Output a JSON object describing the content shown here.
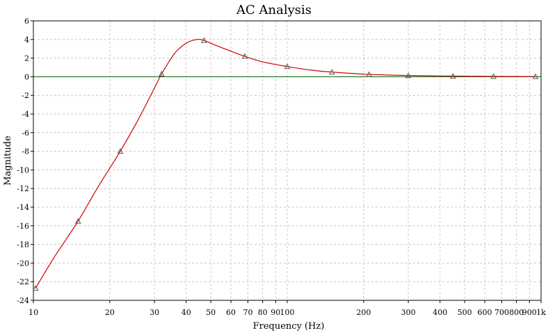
{
  "chart_data": {
    "type": "line",
    "title": "AC Analysis",
    "xlabel": "Frequency (Hz)",
    "ylabel": "Magnitude",
    "x_scale": "log",
    "xlim": [
      10,
      1000
    ],
    "ylim": [
      -24,
      6
    ],
    "grid": true,
    "x_ticks": [
      10,
      20,
      30,
      40,
      50,
      60,
      70,
      80,
      90,
      100,
      200,
      300,
      400,
      500,
      600,
      700,
      800,
      900,
      1000
    ],
    "x_tick_labels": [
      "10",
      "20",
      "30",
      "40",
      "50",
      "60",
      "70",
      "80",
      "90",
      "100",
      "200",
      "300",
      "400",
      "500",
      "600",
      "700",
      "800",
      "900",
      "1k"
    ],
    "y_ticks": [
      6,
      4,
      2,
      0,
      -2,
      -4,
      -6,
      -8,
      -10,
      -12,
      -14,
      -16,
      -18,
      -20,
      -22,
      -24
    ],
    "y_tick_labels": [
      "6",
      "4",
      "2",
      "0",
      "-2",
      "-4",
      "-6",
      "-8",
      "-10",
      "-12",
      "-14",
      "-16",
      "-18",
      "-20",
      "-22",
      "-24"
    ],
    "series": [
      {
        "color": "#d00000",
        "marker": "triangle",
        "x": [
          10.2,
          12,
          15,
          18,
          22,
          26,
          30,
          32,
          36,
          40,
          44,
          47,
          52,
          58,
          68,
          80,
          100,
          125,
          150,
          200,
          210,
          300,
          450,
          650,
          950
        ],
        "y": [
          -22.7,
          -19.5,
          -15.5,
          -11.8,
          -8,
          -4.5,
          -1.2,
          0.3,
          2.5,
          3.6,
          4.0,
          3.9,
          3.4,
          2.9,
          2.2,
          1.6,
          1.1,
          0.7,
          0.5,
          0.28,
          0.25,
          0.13,
          0.07,
          0.04,
          0.02
        ],
        "markers_x": [
          10.2,
          15,
          22,
          32,
          47,
          68,
          100,
          150,
          210,
          300,
          450,
          650,
          950
        ],
        "markers_y": [
          -22.7,
          -15.5,
          -8,
          0.3,
          3.9,
          2.2,
          1.1,
          0.5,
          0.25,
          0.13,
          0.07,
          0.04,
          0.02
        ]
      }
    ],
    "reference_line": {
      "y": 0,
      "color": "#006600"
    },
    "colors": {
      "grid": "#c8c8c8",
      "axis": "#000000"
    }
  }
}
